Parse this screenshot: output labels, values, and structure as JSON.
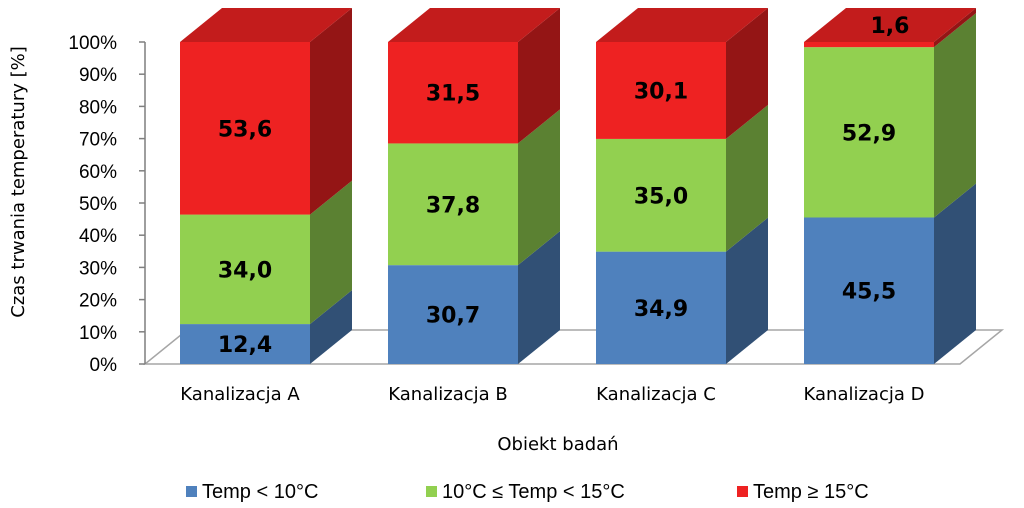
{
  "chart_data": {
    "type": "bar",
    "stacked": true,
    "percent_stacked": true,
    "three_d": true,
    "categories": [
      "Kanalizacja A",
      "Kanalizacja B",
      "Kanalizacja C",
      "Kanalizacja D"
    ],
    "series": [
      {
        "name": "Temp < 10°C",
        "color": "#4F81BD",
        "values": [
          12.4,
          30.7,
          34.9,
          45.5
        ],
        "labels": [
          "12,4",
          "30,7",
          "34,9",
          "45,5"
        ]
      },
      {
        "name": "10°C ≤ Temp < 15°C",
        "color": "#92D050",
        "values": [
          34.0,
          37.8,
          35.0,
          52.9
        ],
        "labels": [
          "34,0",
          "37,8",
          "35,0",
          "52,9"
        ]
      },
      {
        "name": "Temp ≥ 15°C",
        "color": "#EE2222",
        "values": [
          53.6,
          31.5,
          30.1,
          1.6
        ],
        "labels": [
          "53,6",
          "31,5",
          "30,1",
          "1,6"
        ]
      }
    ],
    "xlabel": "Obiekt badań",
    "ylabel": "Czas trwania temperatury  [%]",
    "ylim": [
      0,
      100
    ],
    "yticks": [
      "0%",
      "10%",
      "20%",
      "30%",
      "40%",
      "50%",
      "60%",
      "70%",
      "80%",
      "90%",
      "100%"
    ],
    "grid": false,
    "legend_position": "bottom"
  }
}
